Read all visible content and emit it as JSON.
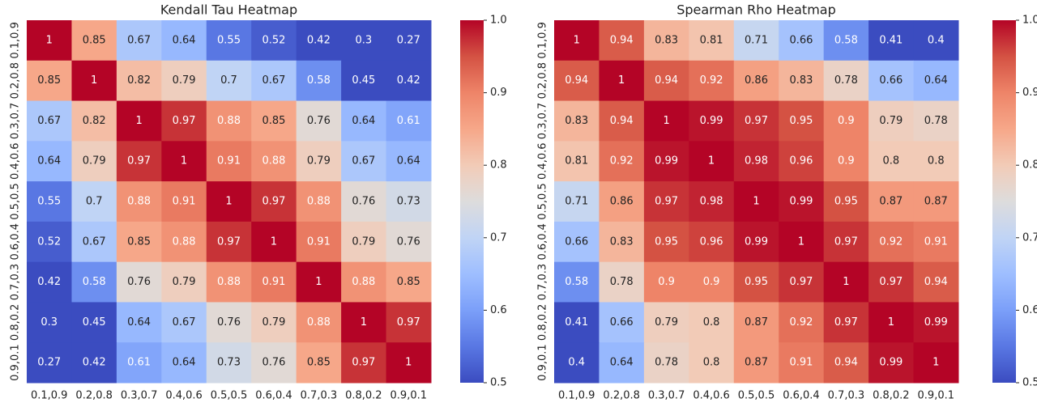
{
  "chart_data": [
    {
      "type": "heatmap",
      "title": "Kendall Tau Heatmap",
      "colormap": "coolwarm",
      "categories": [
        "0.1,0.9",
        "0.2,0.8",
        "0.3,0.7",
        "0.4,0.6",
        "0.5,0.5",
        "0.6,0.4",
        "0.7,0.3",
        "0.8,0.2",
        "0.9,0.1"
      ],
      "values": [
        [
          1,
          0.85,
          0.67,
          0.64,
          0.55,
          0.52,
          0.42,
          0.3,
          0.27
        ],
        [
          0.85,
          1,
          0.82,
          0.79,
          0.7,
          0.67,
          0.58,
          0.45,
          0.42
        ],
        [
          0.67,
          0.82,
          1,
          0.97,
          0.88,
          0.85,
          0.76,
          0.64,
          0.61
        ],
        [
          0.64,
          0.79,
          0.97,
          1,
          0.91,
          0.88,
          0.79,
          0.67,
          0.64
        ],
        [
          0.55,
          0.7,
          0.88,
          0.91,
          1,
          0.97,
          0.88,
          0.76,
          0.73
        ],
        [
          0.52,
          0.67,
          0.85,
          0.88,
          0.97,
          1,
          0.91,
          0.79,
          0.76
        ],
        [
          0.42,
          0.58,
          0.76,
          0.79,
          0.88,
          0.91,
          1,
          0.88,
          0.85
        ],
        [
          0.3,
          0.45,
          0.64,
          0.67,
          0.76,
          0.79,
          0.88,
          1,
          0.97
        ],
        [
          0.27,
          0.42,
          0.61,
          0.64,
          0.73,
          0.76,
          0.85,
          0.97,
          1
        ]
      ],
      "zlim": [
        0.5,
        1
      ],
      "zticks": [
        0.5,
        0.6,
        0.7,
        0.8,
        0.9,
        {
          "value": 1,
          "label": "1.0"
        }
      ]
    },
    {
      "type": "heatmap",
      "title": "Spearman Rho Heatmap",
      "colormap": "coolwarm",
      "categories": [
        "0.1,0.9",
        "0.2,0.8",
        "0.3,0.7",
        "0.4,0.6",
        "0.5,0.5",
        "0.6,0.4",
        "0.7,0.3",
        "0.8,0.2",
        "0.9,0.1"
      ],
      "values": [
        [
          1,
          0.94,
          0.83,
          0.81,
          0.71,
          0.66,
          0.58,
          0.41,
          0.4
        ],
        [
          0.94,
          1,
          0.94,
          0.92,
          0.86,
          0.83,
          0.78,
          0.66,
          0.64
        ],
        [
          0.83,
          0.94,
          1,
          0.99,
          0.97,
          0.95,
          0.9,
          0.79,
          0.78
        ],
        [
          0.81,
          0.92,
          0.99,
          1,
          0.98,
          0.96,
          0.9,
          0.8,
          0.8
        ],
        [
          0.71,
          0.86,
          0.97,
          0.98,
          1,
          0.99,
          0.95,
          0.87,
          0.87
        ],
        [
          0.66,
          0.83,
          0.95,
          0.96,
          0.99,
          1,
          0.97,
          0.92,
          0.91
        ],
        [
          0.58,
          0.78,
          0.9,
          0.9,
          0.95,
          0.97,
          1,
          0.97,
          0.94
        ],
        [
          0.41,
          0.66,
          0.79,
          0.8,
          0.87,
          0.92,
          0.97,
          1,
          0.99
        ],
        [
          0.4,
          0.64,
          0.78,
          0.8,
          0.87,
          0.91,
          0.94,
          0.99,
          1
        ]
      ],
      "zlim": [
        0.5,
        1
      ],
      "zticks": [
        0.5,
        0.6,
        0.7,
        0.8,
        0.9,
        {
          "value": 1,
          "label": "1.0"
        }
      ]
    }
  ]
}
